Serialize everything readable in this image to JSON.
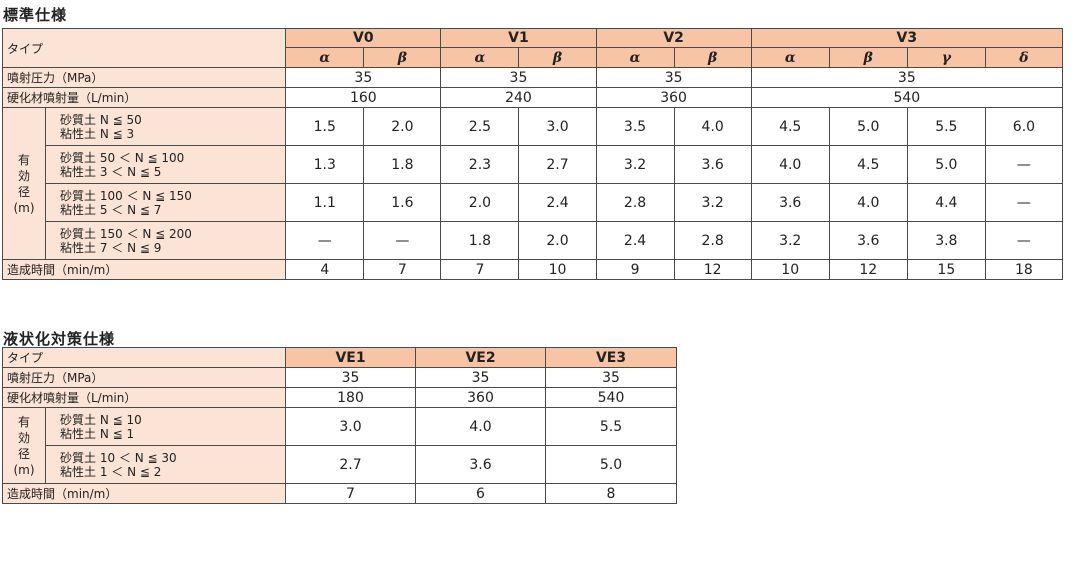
{
  "standard": {
    "title": "標準仕様",
    "row_type": "タイプ",
    "groups": [
      "V0",
      "V1",
      "V2",
      "V3"
    ],
    "subs": [
      "α",
      "β",
      "α",
      "β",
      "α",
      "β",
      "α",
      "β",
      "γ",
      "δ"
    ],
    "row_pressure": "噴射圧力（MPa）",
    "pressure": [
      "35",
      "35",
      "35",
      "35"
    ],
    "row_flow": "硬化材噴射量（L/min）",
    "flow": [
      "160",
      "240",
      "360",
      "540"
    ],
    "side_label": [
      "有",
      "効",
      "径",
      "(m)"
    ],
    "diameter_rows": [
      {
        "cond1": "砂質土 N ≦ 50",
        "cond2": "粘性土 N ≦ 3",
        "values": [
          "1.5",
          "2.0",
          "2.5",
          "3.0",
          "3.5",
          "4.0",
          "4.5",
          "5.0",
          "5.5",
          "6.0"
        ]
      },
      {
        "cond1": "砂質土 50 ＜ N ≦ 100",
        "cond2": "粘性土 3 ＜ N ≦ 5",
        "values": [
          "1.3",
          "1.8",
          "2.3",
          "2.7",
          "3.2",
          "3.6",
          "4.0",
          "4.5",
          "5.0",
          "—"
        ]
      },
      {
        "cond1": "砂質土 100 ＜ N ≦ 150",
        "cond2": "粘性土 5 ＜ N ≦ 7",
        "values": [
          "1.1",
          "1.6",
          "2.0",
          "2.4",
          "2.8",
          "3.2",
          "3.6",
          "4.0",
          "4.4",
          "—"
        ]
      },
      {
        "cond1": "砂質土 150 ＜ N ≦ 200",
        "cond2": "粘性土 7 ＜ N ≦ 9",
        "values": [
          "—",
          "—",
          "1.8",
          "2.0",
          "2.4",
          "2.8",
          "3.2",
          "3.6",
          "3.8",
          "—"
        ]
      }
    ],
    "row_time": "造成時間（min/m）",
    "time": [
      "4",
      "7",
      "7",
      "10",
      "9",
      "12",
      "10",
      "12",
      "15",
      "18"
    ]
  },
  "liquefaction": {
    "title": "液状化対策仕様",
    "row_type": "タイプ",
    "types": [
      "VE1",
      "VE2",
      "VE3"
    ],
    "row_pressure": "噴射圧力（MPa）",
    "pressure": [
      "35",
      "35",
      "35"
    ],
    "row_flow": "硬化材噴射量（L/min）",
    "flow": [
      "180",
      "360",
      "540"
    ],
    "side_label": [
      "有",
      "効",
      "径",
      "(m)"
    ],
    "diameter_rows": [
      {
        "cond1": "砂質土 N ≦ 10",
        "cond2": "粘性土 N ≦ 1",
        "values": [
          "3.0",
          "4.0",
          "5.5"
        ]
      },
      {
        "cond1": "砂質土 10 ＜ N ≦ 30",
        "cond2": "粘性土 1 ＜ N ≦ 2",
        "values": [
          "2.7",
          "3.6",
          "5.0"
        ]
      }
    ],
    "row_time": "造成時間（min/m）",
    "time": [
      "7",
      "6",
      "8"
    ]
  }
}
